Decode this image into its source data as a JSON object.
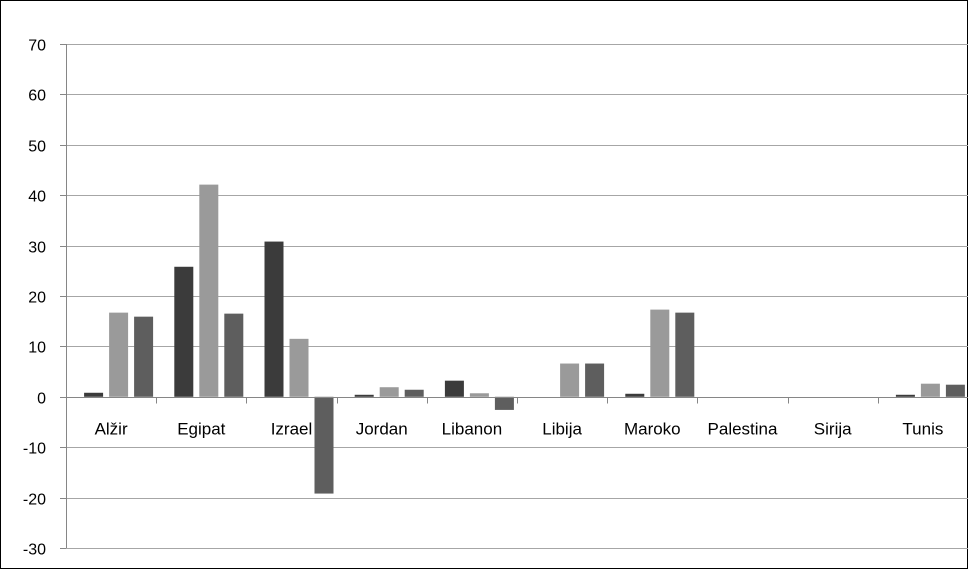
{
  "chart_data": {
    "type": "bar",
    "categories": [
      "Alžir",
      "Egipat",
      "Izrael",
      "Jordan",
      "Libanon",
      "Libija",
      "Maroko",
      "Palestina",
      "Sirija",
      "Tunis"
    ],
    "series": [
      {
        "values": [
          0.8,
          25.8,
          30.8,
          0.4,
          3.2,
          0,
          0.6,
          0,
          0,
          0.4
        ]
      },
      {
        "values": [
          16.7,
          42.1,
          11.5,
          1.9,
          0.7,
          6.6,
          17.3,
          0,
          0,
          2.6
        ]
      },
      {
        "values": [
          15.9,
          16.5,
          -19.2,
          1.4,
          -2.6,
          6.6,
          16.7,
          0,
          0,
          2.4
        ]
      }
    ],
    "yticks": [
      70,
      60,
      50,
      40,
      30,
      20,
      10,
      0,
      -10,
      -20,
      -30
    ],
    "ylim": [
      -30,
      70
    ],
    "grid": true,
    "colors": [
      "#3b3b3b",
      "#9a9a9a",
      "#5e5e5e"
    ],
    "gridline_color": "#a6a6a6",
    "axis_color": "#868686"
  }
}
